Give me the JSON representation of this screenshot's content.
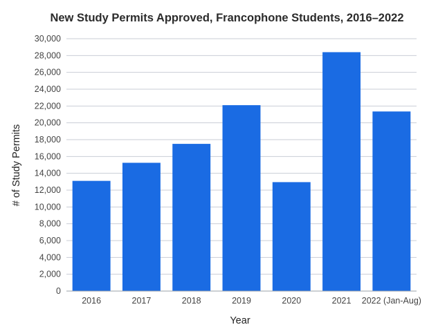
{
  "chart_data": {
    "type": "bar",
    "title": "New Study Permits Approved, Francophone Students, 2016–2022",
    "xlabel": "Year",
    "ylabel": "# of Study Permits",
    "categories": [
      "2016",
      "2017",
      "2018",
      "2019",
      "2020",
      "2021",
      "2022 (Jan-Aug)"
    ],
    "values": [
      13100,
      15250,
      17500,
      22100,
      12950,
      28400,
      21350
    ],
    "ylim": [
      0,
      30000
    ],
    "yticks": [
      0,
      2000,
      4000,
      6000,
      8000,
      10000,
      12000,
      14000,
      16000,
      18000,
      20000,
      22000,
      24000,
      26000,
      28000,
      30000
    ],
    "ytick_labels": [
      "0",
      "2,000",
      "4,000",
      "6,000",
      "8,000",
      "10,000",
      "12,000",
      "14,000",
      "16,000",
      "18,000",
      "20,000",
      "22,000",
      "24,000",
      "26,000",
      "28,000",
      "30,000"
    ],
    "grid": true,
    "colors": {
      "bar": "#1a6be3",
      "grid": "#c9cdd6",
      "axis": "#9aa0aa"
    }
  }
}
